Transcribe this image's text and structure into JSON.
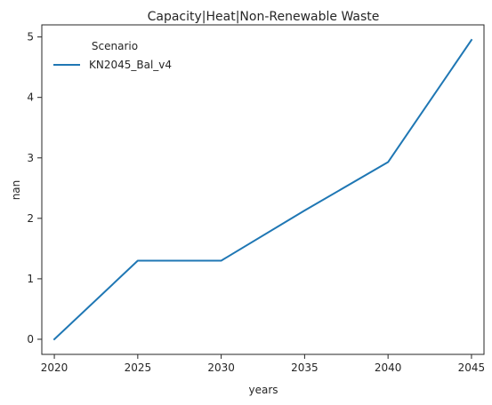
{
  "chart_data": {
    "type": "line",
    "title": "Capacity|Heat|Non-Renewable Waste",
    "xlabel": "years",
    "ylabel": "nan",
    "x": [
      2020,
      2025,
      2030,
      2035,
      2040,
      2045
    ],
    "xticks": [
      "2020",
      "2025",
      "2030",
      "2035",
      "2040",
      "2045"
    ],
    "yticks": [
      "0",
      "1",
      "2",
      "3",
      "4",
      "5"
    ],
    "xlim": [
      2019.25,
      2045.75
    ],
    "ylim": [
      -0.25,
      5.2
    ],
    "grid": false,
    "legend": {
      "title": "Scenario",
      "placement": "top-left"
    },
    "series": [
      {
        "name": "KN2045_Bal_v4",
        "color": "#1f77b4",
        "values": [
          0.0,
          1.3,
          1.3,
          2.13,
          2.93,
          4.95
        ]
      }
    ]
  }
}
